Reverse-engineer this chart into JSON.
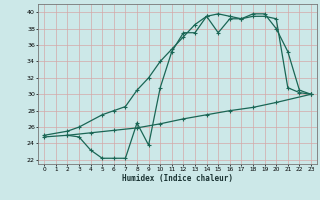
{
  "xlabel": "Humidex (Indice chaleur)",
  "xlim": [
    -0.5,
    23.5
  ],
  "ylim": [
    21.5,
    41
  ],
  "yticks": [
    22,
    24,
    26,
    28,
    30,
    32,
    34,
    36,
    38,
    40
  ],
  "xticks": [
    0,
    1,
    2,
    3,
    4,
    5,
    6,
    7,
    8,
    9,
    10,
    11,
    12,
    13,
    14,
    15,
    16,
    17,
    18,
    19,
    20,
    21,
    22,
    23
  ],
  "bg_color": "#cce8e8",
  "grid_color": "#b0d4d4",
  "line_color": "#1a6655",
  "line1_x": [
    2,
    3,
    4,
    5,
    6,
    7,
    8,
    9,
    10,
    11,
    12,
    13,
    14,
    15,
    16,
    17,
    18,
    19,
    20,
    21,
    22,
    23
  ],
  "line1_y": [
    25.0,
    24.8,
    23.2,
    22.2,
    22.2,
    22.2,
    26.5,
    23.8,
    30.8,
    35.2,
    37.5,
    37.5,
    39.5,
    37.5,
    39.2,
    39.2,
    39.8,
    39.8,
    38.0,
    35.2,
    30.5,
    30.0
  ],
  "line2_x": [
    0,
    2,
    3,
    5,
    6,
    7,
    8,
    9,
    10,
    11,
    12,
    13,
    14,
    15,
    16,
    17,
    18,
    19,
    20,
    21,
    22,
    23
  ],
  "line2_y": [
    25.0,
    25.5,
    26.0,
    27.5,
    28.0,
    28.5,
    30.5,
    32.0,
    34.0,
    35.5,
    37.0,
    38.5,
    39.5,
    39.8,
    39.5,
    39.2,
    39.5,
    39.5,
    39.2,
    30.8,
    30.2,
    30.0
  ],
  "line3_x": [
    0,
    2,
    4,
    6,
    8,
    10,
    12,
    14,
    16,
    18,
    20,
    23
  ],
  "line3_y": [
    24.8,
    25.0,
    25.3,
    25.6,
    25.9,
    26.4,
    27.0,
    27.5,
    28.0,
    28.4,
    29.0,
    30.0
  ]
}
